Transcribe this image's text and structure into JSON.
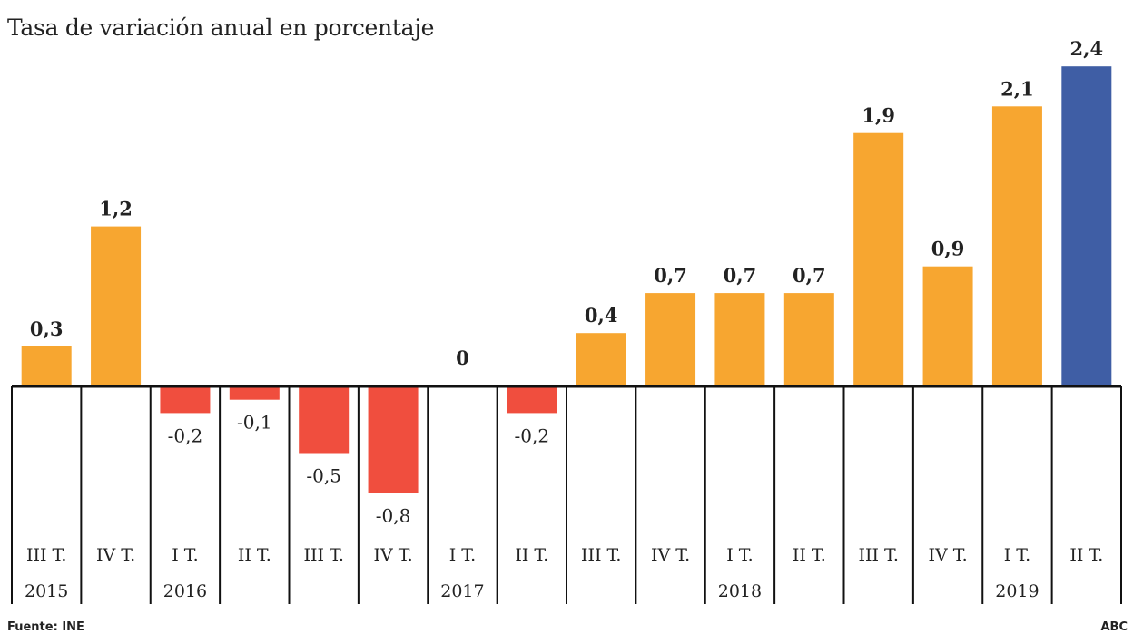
{
  "chart_data": {
    "type": "bar",
    "title": "Tasa de variación anual en porcentaje",
    "xlabel": "",
    "ylabel": "",
    "categories": [
      {
        "quarter": "III T.",
        "year": "2015"
      },
      {
        "quarter": "IV T.",
        "year": ""
      },
      {
        "quarter": "I T.",
        "year": "2016"
      },
      {
        "quarter": "II T.",
        "year": ""
      },
      {
        "quarter": "III T.",
        "year": ""
      },
      {
        "quarter": "IV T.",
        "year": ""
      },
      {
        "quarter": "I T.",
        "year": "2017"
      },
      {
        "quarter": "II T.",
        "year": ""
      },
      {
        "quarter": "III T.",
        "year": ""
      },
      {
        "quarter": "IV T.",
        "year": ""
      },
      {
        "quarter": "I T.",
        "year": "2018"
      },
      {
        "quarter": "II T.",
        "year": ""
      },
      {
        "quarter": "III T.",
        "year": ""
      },
      {
        "quarter": "IV T.",
        "year": ""
      },
      {
        "quarter": "I T.",
        "year": "2019"
      },
      {
        "quarter": "II T.",
        "year": ""
      }
    ],
    "values": [
      0.3,
      1.2,
      -0.2,
      -0.1,
      -0.5,
      -0.8,
      0,
      -0.2,
      0.4,
      0.7,
      0.7,
      0.7,
      1.9,
      0.9,
      2.1,
      2.4
    ],
    "value_labels": [
      "0,3",
      "1,2",
      "-0,2",
      "-0,1",
      "-0,5",
      "-0,8",
      "0",
      "-0,2",
      "0,4",
      "0,7",
      "0,7",
      "0,7",
      "1,9",
      "0,9",
      "2,1",
      "2,4"
    ],
    "highlight_index": 15,
    "ylim": [
      -0.8,
      2.4
    ],
    "grid": false,
    "legend": "none",
    "colors": {
      "positive": "#f7a630",
      "negative": "#f04e3e",
      "highlight": "#3f5ea5",
      "axis": "#111111"
    }
  },
  "footer": {
    "source": "Fuente: INE",
    "brand": "ABC"
  }
}
